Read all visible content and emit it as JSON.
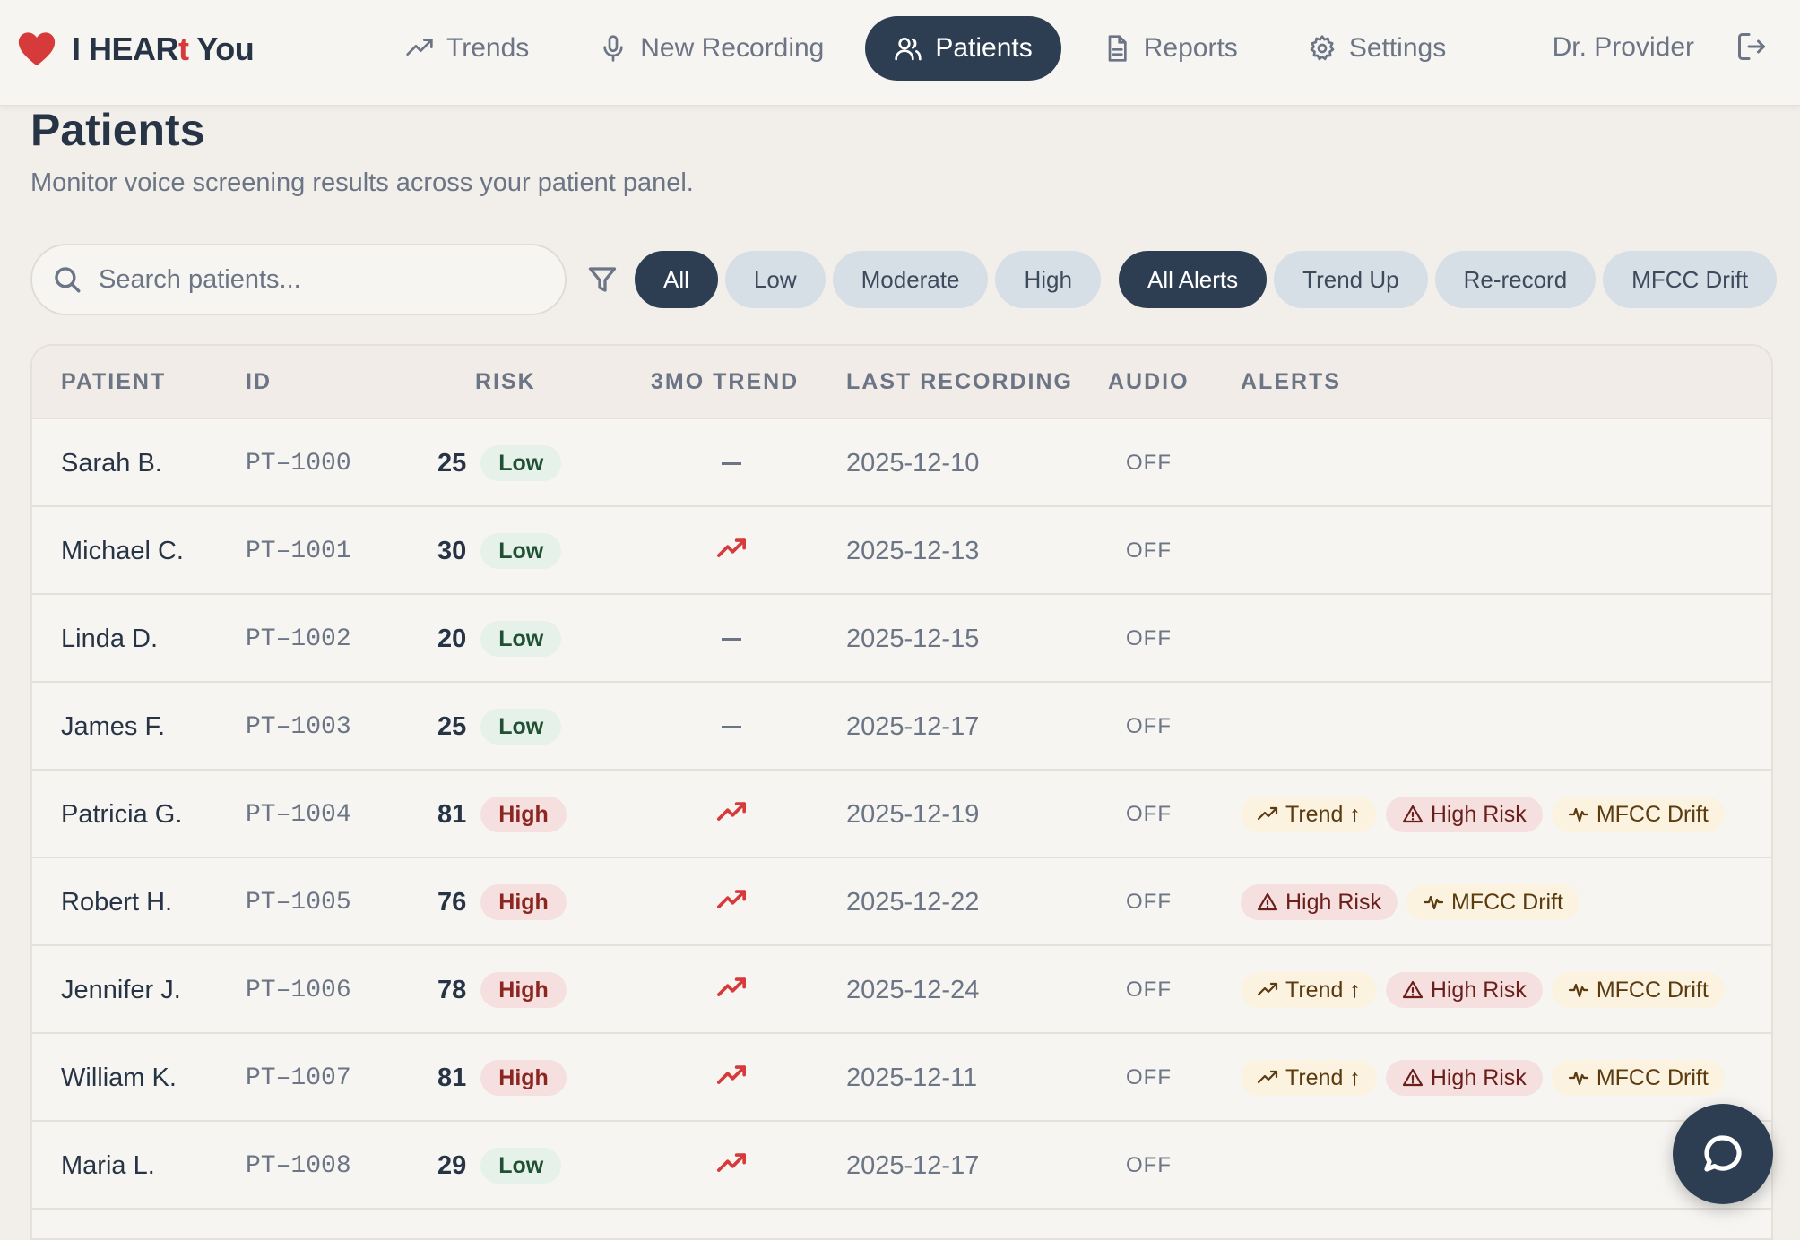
{
  "brand": {
    "prefix": "I HEAR",
    "accent": "t",
    "suffix": " You"
  },
  "nav": {
    "items": [
      {
        "label": "Trends",
        "icon": "trending-up-icon",
        "active": false
      },
      {
        "label": "New Recording",
        "icon": "microphone-icon",
        "active": false
      },
      {
        "label": "Patients",
        "icon": "users-icon",
        "active": true
      },
      {
        "label": "Reports",
        "icon": "document-icon",
        "active": false
      },
      {
        "label": "Settings",
        "icon": "gear-icon",
        "active": false
      }
    ],
    "user": "Dr. Provider"
  },
  "page": {
    "title": "Patients",
    "subtitle": "Monitor voice screening results across your patient panel."
  },
  "search": {
    "placeholder": "Search patients..."
  },
  "risk_filters": [
    "All",
    "Low",
    "Moderate",
    "High"
  ],
  "risk_filter_active": "All",
  "alert_filters": [
    "All Alerts",
    "Trend Up",
    "Re-record",
    "MFCC Drift"
  ],
  "alert_filter_active": "All Alerts",
  "table": {
    "headers": [
      "PATIENT",
      "ID",
      "RISK",
      "3MO TREND",
      "LAST RECORDING",
      "AUDIO",
      "ALERTS"
    ],
    "rows": [
      {
        "name": "Sarah B.",
        "id": "PT–1000",
        "score": "25",
        "risk": "Low",
        "trend": "flat",
        "date": "2025-12-10",
        "audio": "OFF",
        "alerts": []
      },
      {
        "name": "Michael C.",
        "id": "PT–1001",
        "score": "30",
        "risk": "Low",
        "trend": "up",
        "date": "2025-12-13",
        "audio": "OFF",
        "alerts": []
      },
      {
        "name": "Linda D.",
        "id": "PT–1002",
        "score": "20",
        "risk": "Low",
        "trend": "flat",
        "date": "2025-12-15",
        "audio": "OFF",
        "alerts": []
      },
      {
        "name": "James F.",
        "id": "PT–1003",
        "score": "25",
        "risk": "Low",
        "trend": "flat",
        "date": "2025-12-17",
        "audio": "OFF",
        "alerts": []
      },
      {
        "name": "Patricia G.",
        "id": "PT–1004",
        "score": "81",
        "risk": "High",
        "trend": "up",
        "date": "2025-12-19",
        "audio": "OFF",
        "alerts": [
          "Trend ↑",
          "High Risk",
          "MFCC Drift"
        ]
      },
      {
        "name": "Robert H.",
        "id": "PT–1005",
        "score": "76",
        "risk": "High",
        "trend": "up",
        "date": "2025-12-22",
        "audio": "OFF",
        "alerts": [
          "High Risk",
          "MFCC Drift"
        ]
      },
      {
        "name": "Jennifer J.",
        "id": "PT–1006",
        "score": "78",
        "risk": "High",
        "trend": "up",
        "date": "2025-12-24",
        "audio": "OFF",
        "alerts": [
          "Trend ↑",
          "High Risk",
          "MFCC Drift"
        ]
      },
      {
        "name": "William K.",
        "id": "PT–1007",
        "score": "81",
        "risk": "High",
        "trend": "up",
        "date": "2025-12-11",
        "audio": "OFF",
        "alerts": [
          "Trend ↑",
          "High Risk",
          "MFCC Drift"
        ]
      },
      {
        "name": "Maria L.",
        "id": "PT–1008",
        "score": "29",
        "risk": "Low",
        "trend": "up",
        "date": "2025-12-17",
        "audio": "OFF",
        "alerts": []
      }
    ]
  },
  "colors": {
    "primary": "#2d3e52",
    "accent_red": "#d73a3a",
    "background": "#f2efea",
    "low_badge": "#e6f1e9",
    "high_badge": "#f5e0df",
    "warn_badge": "#fbf2df"
  },
  "chat": {
    "icon": "chat-bubble-icon"
  }
}
